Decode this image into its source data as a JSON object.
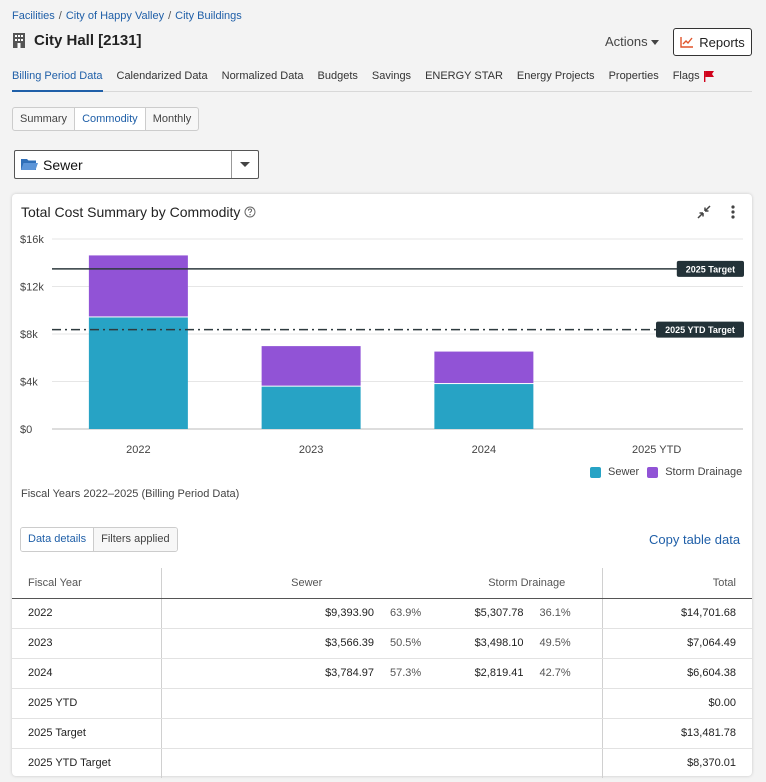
{
  "breadcrumb": [
    {
      "label": "Facilities"
    },
    {
      "label": "City of Happy Valley"
    },
    {
      "label": "City Buildings"
    }
  ],
  "breadcrumb_separator": "/",
  "page_title": "City Hall [2131]",
  "actions_label": "Actions",
  "reports_label": "Reports",
  "tabs": [
    {
      "label": "Billing Period Data",
      "active": true
    },
    {
      "label": "Calendarized Data"
    },
    {
      "label": "Normalized Data"
    },
    {
      "label": "Budgets"
    },
    {
      "label": "Savings"
    },
    {
      "label": "ENERGY STAR"
    },
    {
      "label": "Energy Projects"
    },
    {
      "label": "Properties"
    },
    {
      "label": "Flags",
      "icon": "red-flag-icon"
    }
  ],
  "view_toggle": [
    {
      "label": "Summary"
    },
    {
      "label": "Commodity",
      "active": true
    },
    {
      "label": "Monthly"
    }
  ],
  "commodity_select": {
    "value": "Sewer",
    "icon": "folder-open-icon"
  },
  "card": {
    "title": "Total Cost Summary by Commodity",
    "caption": "Fiscal Years 2022–2025 (Billing Period Data)"
  },
  "chart_data": {
    "type": "bar",
    "stacked": true,
    "categories": [
      "2022",
      "2023",
      "2024",
      "2025 YTD"
    ],
    "series": [
      {
        "name": "Sewer",
        "color": "#27a3c5",
        "values": [
          9393.9,
          3566.39,
          3784.97,
          0
        ]
      },
      {
        "name": "Storm Drainage",
        "color": "#9153d6",
        "values": [
          5307.78,
          3498.1,
          2819.41,
          0
        ]
      }
    ],
    "yticks": [
      {
        "value": 0,
        "label": "$0"
      },
      {
        "value": 4000,
        "label": "$4k"
      },
      {
        "value": 8000,
        "label": "$8k"
      },
      {
        "value": 12000,
        "label": "$12k"
      },
      {
        "value": 16000,
        "label": "$16k"
      }
    ],
    "ylim": [
      0,
      16000
    ],
    "grid": true,
    "legend_position": "bottom-right",
    "reference_lines": [
      {
        "label": "2025 Target",
        "value": 13481.78,
        "style": "solid"
      },
      {
        "label": "2025 YTD Target",
        "value": 8370.01,
        "style": "dash-dot"
      }
    ]
  },
  "table_toggle": [
    {
      "label": "Data details",
      "active": true
    },
    {
      "label": "Filters applied"
    }
  ],
  "copy_label": "Copy table data",
  "table": {
    "headers": {
      "year": "Fiscal Year",
      "sewer": "Sewer",
      "storm": "Storm Drainage",
      "total": "Total"
    },
    "rows": [
      {
        "year": "2022",
        "sewer": "$9,393.90",
        "sewer_pct": "63.9%",
        "storm": "$5,307.78",
        "storm_pct": "36.1%",
        "total": "$14,701.68"
      },
      {
        "year": "2023",
        "sewer": "$3,566.39",
        "sewer_pct": "50.5%",
        "storm": "$3,498.10",
        "storm_pct": "49.5%",
        "total": "$7,064.49"
      },
      {
        "year": "2024",
        "sewer": "$3,784.97",
        "sewer_pct": "57.3%",
        "storm": "$2,819.41",
        "storm_pct": "42.7%",
        "total": "$6,604.38"
      },
      {
        "year": "2025 YTD",
        "sewer": "",
        "sewer_pct": "",
        "storm": "",
        "storm_pct": "",
        "total": "$0.00"
      },
      {
        "year": "2025 Target",
        "sewer": "",
        "sewer_pct": "",
        "storm": "",
        "storm_pct": "",
        "total": "$13,481.78"
      },
      {
        "year": "2025 YTD Target",
        "sewer": "",
        "sewer_pct": "",
        "storm": "",
        "storm_pct": "",
        "total": "$8,370.01"
      }
    ]
  }
}
